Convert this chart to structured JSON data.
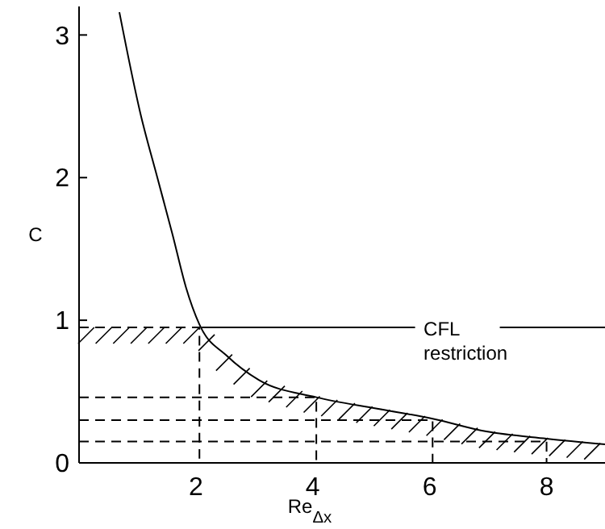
{
  "chart_data": {
    "type": "line",
    "xlabel": "Re$_{Δx}$",
    "ylabel": "C",
    "xlim": [
      0,
      9
    ],
    "ylim": [
      0,
      3.2
    ],
    "xticks": [
      2,
      4,
      6,
      8
    ],
    "yticks": [
      0,
      1,
      2,
      3
    ],
    "grid": false,
    "marker": "none",
    "line_style": "solid",
    "series": [
      {
        "color": "#000000",
        "x": [
          0.69,
          1.05,
          1.34,
          1.6,
          1.83,
          2.06,
          2.53,
          3.08,
          4.06,
          5.1,
          6.05,
          6.97,
          8.0,
          9.0
        ],
        "values": [
          3.16,
          2.45,
          2.0,
          1.6,
          1.23,
          0.97,
          0.75,
          0.58,
          0.46,
          0.38,
          0.31,
          0.22,
          0.17,
          0.13
        ]
      },
      {
        "color": "#000000",
        "x": [
          2.1,
          5.75,
          null,
          7.2,
          9.0
        ],
        "values": [
          0.95,
          0.95,
          null,
          0.95,
          0.95
        ]
      },
      {
        "color": "#000000",
        "line_style": "dashed",
        "x": [
          0,
          2.06,
          2.06
        ],
        "values": [
          0.95,
          0.95,
          0
        ]
      },
      {
        "color": "#000000",
        "line_style": "dashed",
        "x": [
          0,
          4.06,
          4.06
        ],
        "values": [
          0.46,
          0.46,
          0
        ]
      },
      {
        "color": "#000000",
        "line_style": "dashed",
        "x": [
          0,
          6.05,
          6.05
        ],
        "values": [
          0.3,
          0.3,
          0
        ]
      },
      {
        "color": "#000000",
        "line_style": "dashed",
        "x": [
          0,
          8.0,
          8.0
        ],
        "values": [
          0.15,
          0.15,
          0
        ]
      }
    ],
    "annotations": [
      "CFL restriction"
    ]
  }
}
